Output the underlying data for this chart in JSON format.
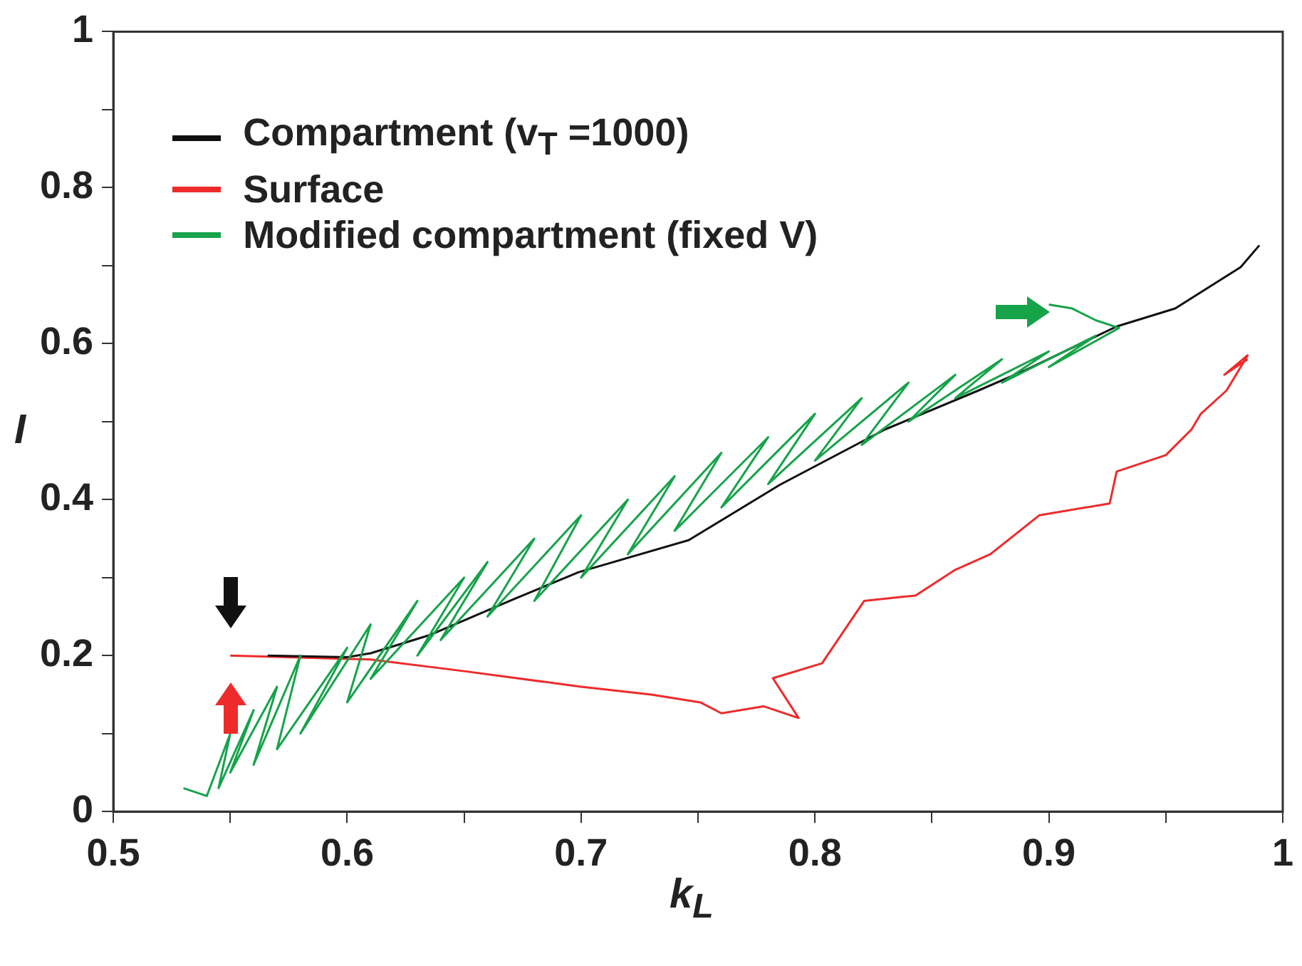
{
  "chart_data": {
    "type": "line",
    "xlabel": "k$_{L}$",
    "ylabel": "I",
    "xlim": [
      0.5,
      1
    ],
    "ylim": [
      0,
      1
    ],
    "xticks": [
      0.5,
      {
        "value": 0.55,
        "label": null
      },
      0.6,
      {
        "value": 0.65,
        "label": null
      },
      0.7,
      {
        "value": 0.75,
        "label": null
      },
      0.8,
      {
        "value": 0.85,
        "label": null
      },
      0.9,
      {
        "value": 0.95,
        "label": null
      },
      1
    ],
    "yticks": [
      0,
      {
        "value": 0.1,
        "label": null
      },
      0.2,
      {
        "value": 0.3,
        "label": null
      },
      0.4,
      {
        "value": 0.5,
        "label": null
      },
      0.6,
      {
        "value": 0.7,
        "label": null
      },
      0.8,
      {
        "value": 0.9,
        "label": null
      },
      1
    ],
    "legend": "top left",
    "grid": false,
    "marker": "none",
    "line_style": "solid",
    "series": [
      {
        "name": "Modified compartment (fixed V)",
        "color": "#16a34a",
        "x": [
          0.53,
          0.54,
          0.55,
          0.545,
          0.56,
          0.55,
          0.57,
          0.56,
          0.58,
          0.57,
          0.6,
          0.58,
          0.61,
          0.6,
          0.63,
          0.61,
          0.65,
          0.63,
          0.66,
          0.64,
          0.68,
          0.66,
          0.7,
          0.68,
          0.72,
          0.7,
          0.74,
          0.72,
          0.76,
          0.74,
          0.78,
          0.76,
          0.8,
          0.78,
          0.82,
          0.8,
          0.84,
          0.82,
          0.86,
          0.84,
          0.88,
          0.86,
          0.9,
          0.88,
          0.92,
          0.9,
          0.93,
          0.92,
          0.91,
          0.9
        ],
        "values": [
          0.03,
          0.02,
          0.1,
          0.03,
          0.13,
          0.05,
          0.16,
          0.06,
          0.2,
          0.08,
          0.21,
          0.1,
          0.24,
          0.14,
          0.27,
          0.17,
          0.3,
          0.2,
          0.32,
          0.22,
          0.35,
          0.25,
          0.38,
          0.27,
          0.4,
          0.3,
          0.43,
          0.33,
          0.46,
          0.36,
          0.48,
          0.39,
          0.51,
          0.42,
          0.53,
          0.45,
          0.55,
          0.47,
          0.56,
          0.5,
          0.58,
          0.53,
          0.59,
          0.55,
          0.61,
          0.57,
          0.62,
          0.63,
          0.645,
          0.65
        ]
      },
      {
        "name": "Compartment (v$_{T}$ =1000)",
        "color": "#111111",
        "x": [
          0.566,
          0.6,
          0.61,
          0.635,
          0.671,
          0.699,
          0.746,
          0.785,
          0.83,
          0.87,
          0.89,
          0.929,
          0.954,
          0.982,
          0.99
        ],
        "values": [
          0.2,
          0.198,
          0.203,
          0.226,
          0.272,
          0.307,
          0.348,
          0.419,
          0.49,
          0.54,
          0.566,
          0.622,
          0.645,
          0.698,
          0.726
        ]
      },
      {
        "name": "Surface",
        "color": "#ee2b2b",
        "x": [
          0.55,
          0.61,
          0.65,
          0.7,
          0.73,
          0.751,
          0.76,
          0.778,
          0.793,
          0.782,
          0.803,
          0.821,
          0.843,
          0.86,
          0.875,
          0.896,
          0.926,
          0.929,
          0.95,
          0.961,
          0.965,
          0.976,
          0.982,
          0.985,
          0.975,
          0.985
        ],
        "values": [
          0.2,
          0.195,
          0.18,
          0.16,
          0.15,
          0.14,
          0.126,
          0.135,
          0.12,
          0.171,
          0.19,
          0.27,
          0.277,
          0.31,
          0.33,
          0.38,
          0.395,
          0.436,
          0.457,
          0.49,
          0.51,
          0.54,
          0.57,
          0.585,
          0.56,
          0.58
        ]
      }
    ]
  }
}
